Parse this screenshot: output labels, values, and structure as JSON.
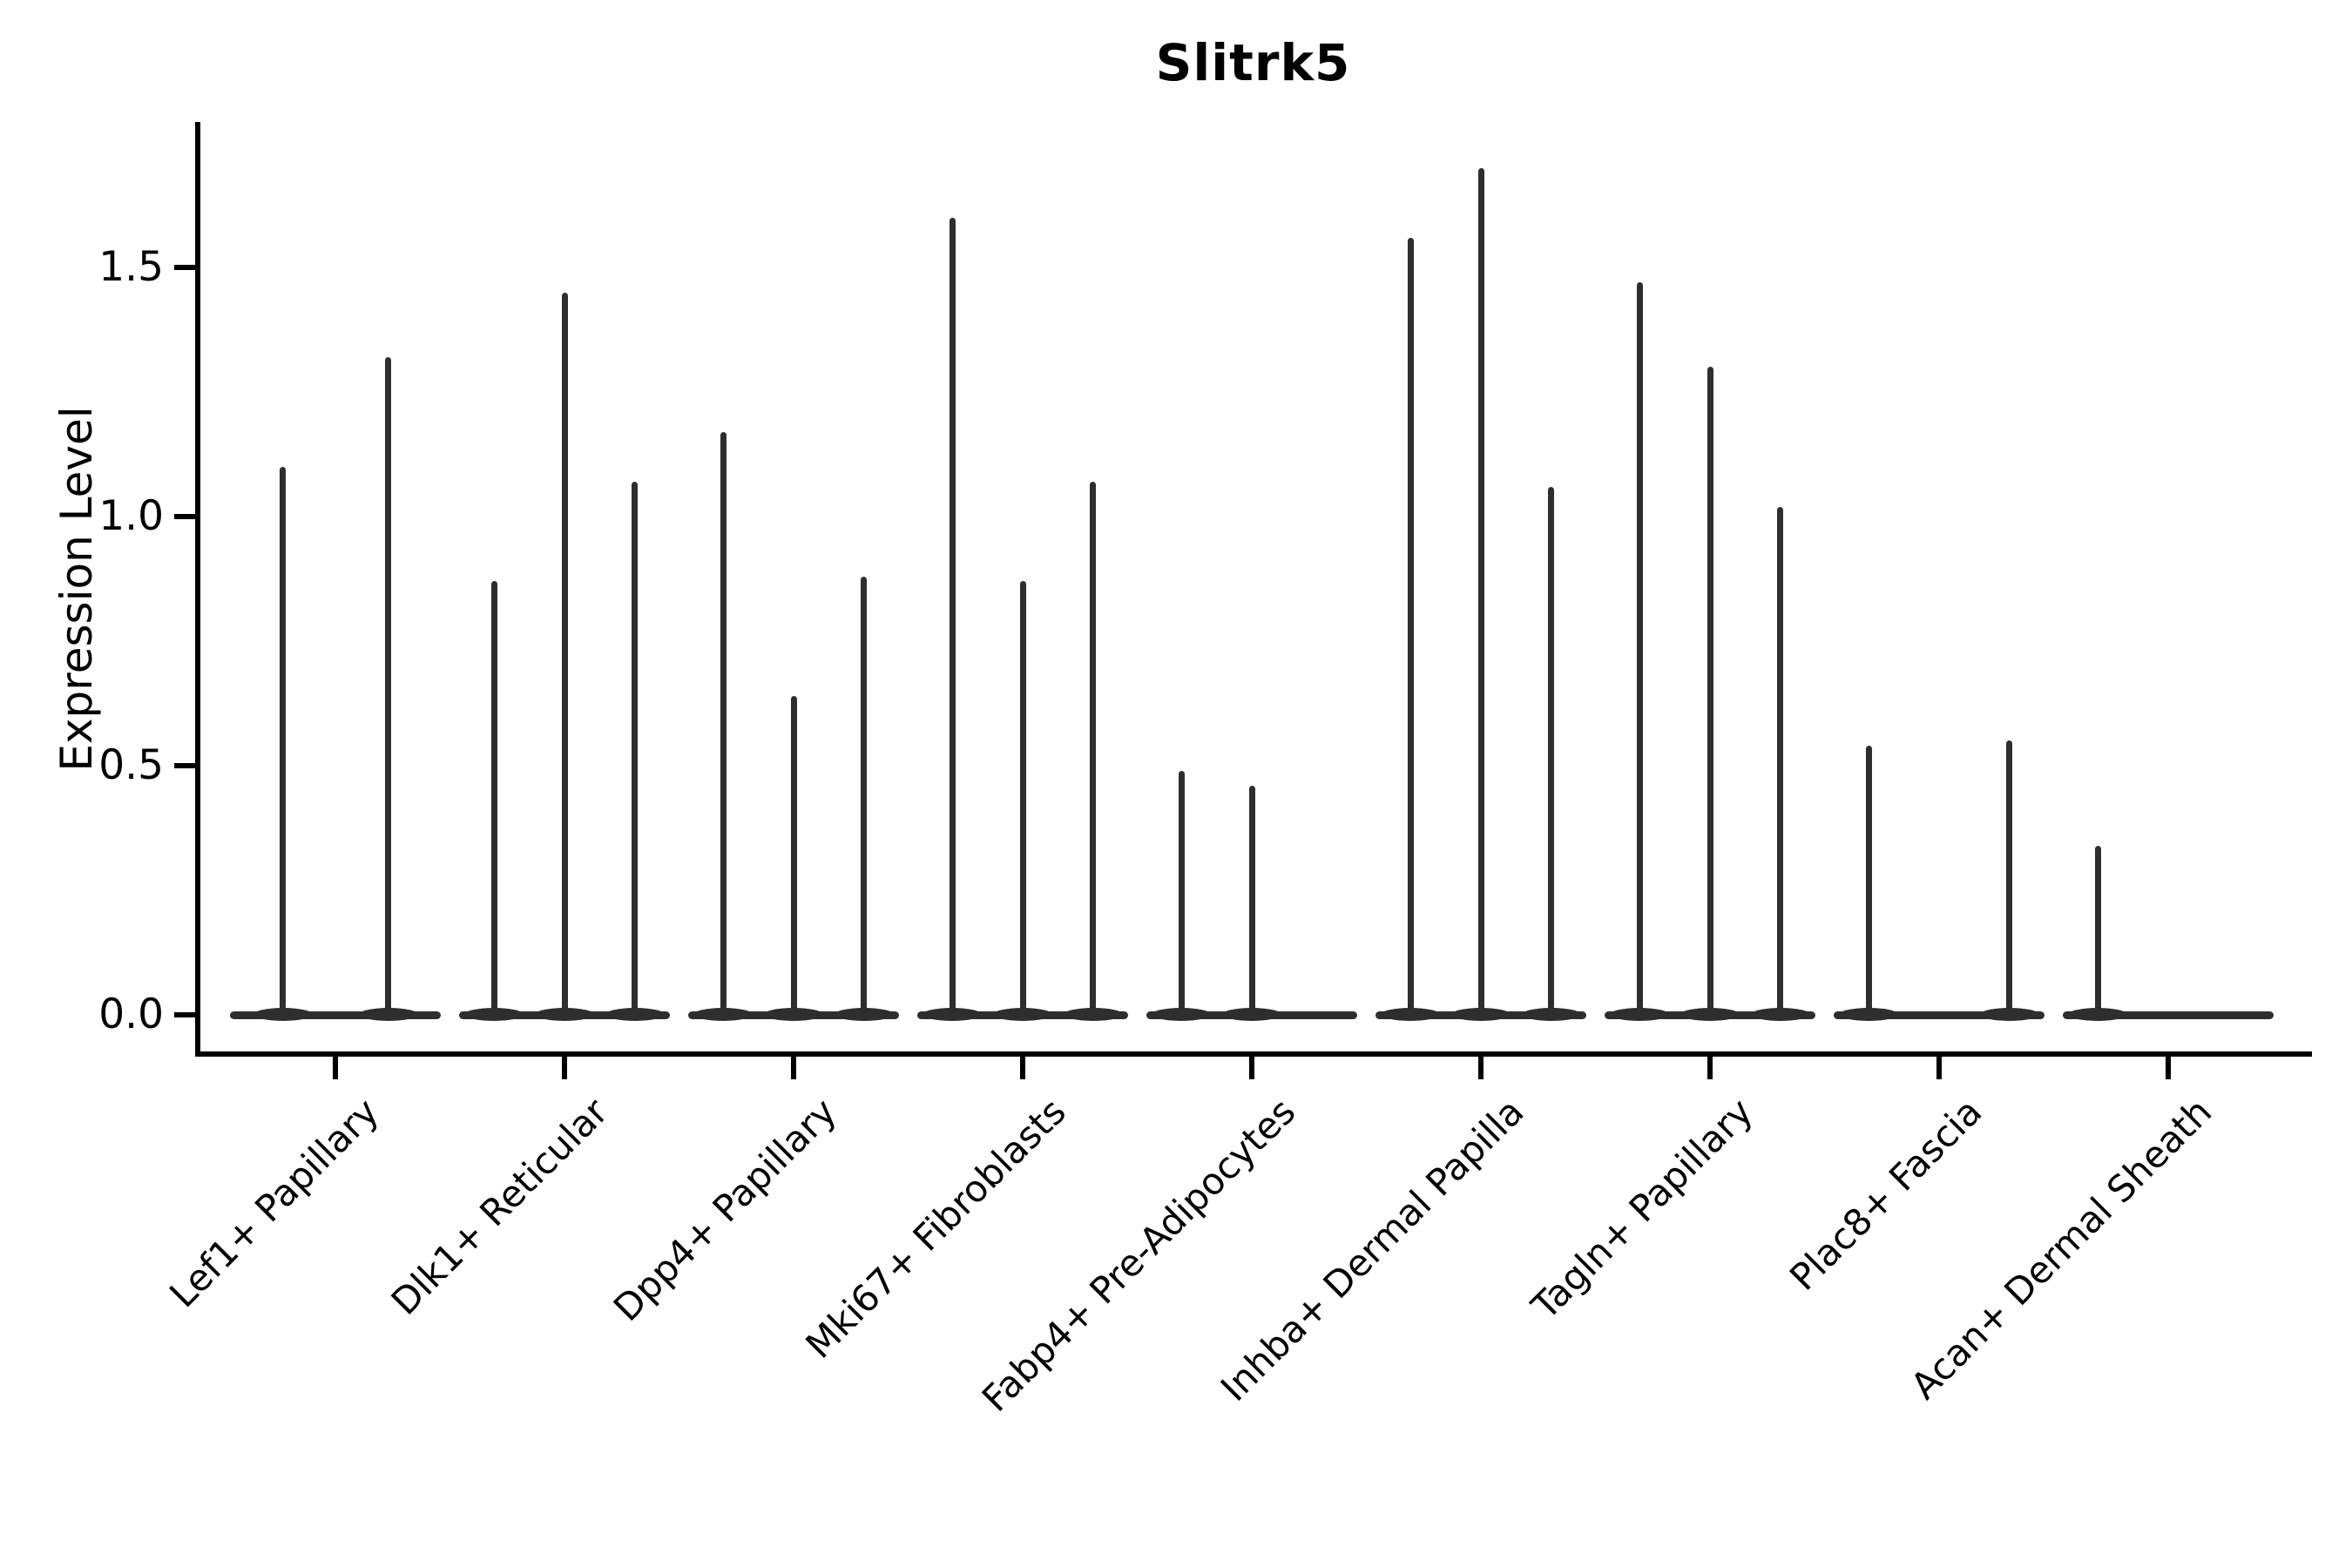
{
  "chart_data": {
    "type": "violin",
    "title": "Slitrk5",
    "xlabel": "",
    "ylabel": "Expression Level",
    "yticks": [
      0.0,
      0.5,
      1.0,
      1.5
    ],
    "ylim": [
      -0.08,
      1.79
    ],
    "grid": false,
    "legend": "none",
    "violin_color": "#2e2e2e",
    "axis_color": "#000000",
    "categories": [
      "Lef1+ Papillary",
      "Dlk1+ Reticular",
      "Dpp4+ Papillary",
      "Mki67+ Fibroblasts",
      "Fabp4+ Pre-Adipocytes",
      "Inhba+ Dermal Papilla",
      "Tagln+ Papillary",
      "Plac8+ Fascia",
      "Acan+ Dermal Sheath"
    ],
    "groups": [
      {
        "category": "Lef1+ Papillary",
        "violin_maxima": [
          1.1,
          1.32
        ]
      },
      {
        "category": "Dlk1+ Reticular",
        "violin_maxima": [
          0.87,
          1.45,
          1.07
        ]
      },
      {
        "category": "Dpp4+ Papillary",
        "violin_maxima": [
          1.17,
          0.64,
          0.88
        ]
      },
      {
        "category": "Mki67+ Fibroblasts",
        "violin_maxima": [
          1.6,
          0.87,
          1.07
        ]
      },
      {
        "category": "Fabp4+ Pre-Adipocytes",
        "violin_maxima": [
          0.49,
          0.46,
          0.0
        ]
      },
      {
        "category": "Inhba+ Dermal Papilla",
        "violin_maxima": [
          1.56,
          1.7,
          1.06
        ]
      },
      {
        "category": "Tagln+ Papillary",
        "violin_maxima": [
          1.47,
          1.3,
          1.02
        ]
      },
      {
        "category": "Plac8+ Fascia",
        "violin_maxima": [
          0.54,
          0.0,
          0.55
        ]
      },
      {
        "category": "Acan+ Dermal Sheath",
        "violin_maxima": [
          0.34,
          0.0,
          0.0
        ]
      }
    ],
    "note": "All violins sit on a flat density base at expression 0; maxima are the top of each violin spike."
  }
}
